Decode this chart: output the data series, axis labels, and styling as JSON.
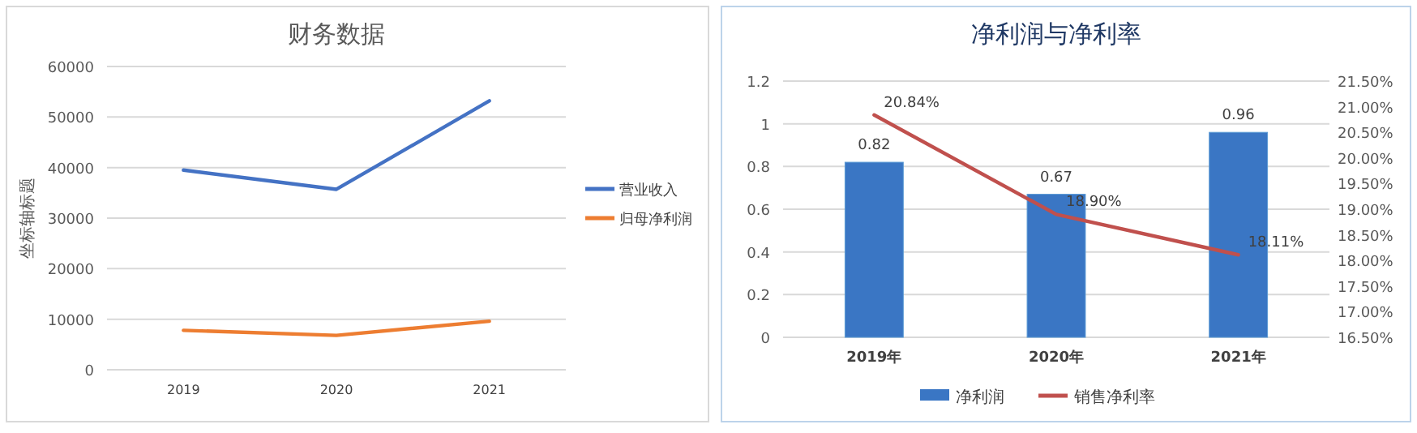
{
  "chart_data": [
    {
      "type": "line",
      "title": "财务数据",
      "ylabel": "坐标轴标题",
      "categories": [
        "2019",
        "2020",
        "2021"
      ],
      "series": [
        {
          "name": "营业收入",
          "color": "#4472c4",
          "values": [
            39500,
            35700,
            53200
          ]
        },
        {
          "name": "归母净利润",
          "color": "#ed7d31",
          "values": [
            7800,
            6800,
            9600
          ]
        }
      ],
      "ylim": [
        0,
        60000
      ],
      "yticks": [
        0,
        10000,
        20000,
        30000,
        40000,
        50000,
        60000
      ],
      "grid": "y",
      "legend": "right"
    },
    {
      "type": "bar",
      "title": "净利润与净利率",
      "categories": [
        "2019年",
        "2020年",
        "2021年"
      ],
      "series": [
        {
          "name": "净利润",
          "color": "#3a76c4",
          "values": [
            0.82,
            0.67,
            0.96
          ],
          "value_labels": [
            "0.82",
            "0.67",
            "0.96"
          ]
        },
        {
          "name": "销售净利率",
          "type": "line",
          "axis": "y2",
          "color": "#c0504d",
          "values": [
            20.84,
            18.9,
            18.11
          ],
          "value_labels": [
            "20.84%",
            "18.90%",
            "18.11%"
          ]
        }
      ],
      "ylim": [
        0,
        1.2
      ],
      "yticks": [
        0,
        0.2,
        0.4,
        0.6,
        0.8,
        1,
        1.2
      ],
      "y2lim": [
        16.5,
        21.5
      ],
      "y2ticks": [
        {
          "value": 16.5,
          "label": "16.50%"
        },
        {
          "value": 17,
          "label": "17.00%"
        },
        {
          "value": 17.5,
          "label": "17.50%"
        },
        {
          "value": 18,
          "label": "18.00%"
        },
        {
          "value": 18.5,
          "label": "18.50%"
        },
        {
          "value": 19,
          "label": "19.00%"
        },
        {
          "value": 19.5,
          "label": "19.50%"
        },
        {
          "value": 20,
          "label": "20.00%"
        },
        {
          "value": 20.5,
          "label": "20.50%"
        },
        {
          "value": 21,
          "label": "21.00%"
        },
        {
          "value": 21.5,
          "label": "21.50%"
        }
      ],
      "grid": "y",
      "legend": "bottom"
    }
  ]
}
